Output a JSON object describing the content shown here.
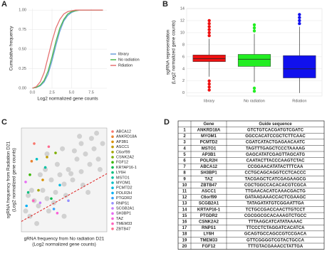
{
  "chart_data": [
    {
      "type": "line",
      "panel": "A",
      "xlabel": "Log2 normalized gene counts",
      "ylabel": "Cumulative frequency",
      "x": [
        0,
        0.5,
        1,
        1.5,
        2,
        2.5,
        3,
        3.5,
        4,
        4.5,
        5,
        5.5,
        6,
        7,
        8,
        9
      ],
      "series": [
        {
          "name": "library",
          "color": "#6a9fd8",
          "values": [
            0,
            0.01,
            0.03,
            0.08,
            0.18,
            0.35,
            0.55,
            0.73,
            0.86,
            0.93,
            0.97,
            0.99,
            1,
            1,
            1,
            1
          ]
        },
        {
          "name": "No radiation",
          "color": "#4cb84c",
          "values": [
            0,
            0.01,
            0.04,
            0.1,
            0.22,
            0.4,
            0.6,
            0.77,
            0.88,
            0.95,
            0.98,
            0.99,
            1,
            1,
            1,
            1
          ]
        },
        {
          "name": "Rdiation",
          "color": "#e57373",
          "values": [
            0,
            0.02,
            0.08,
            0.2,
            0.4,
            0.6,
            0.77,
            0.88,
            0.95,
            0.98,
            0.99,
            1,
            1,
            1,
            1,
            1
          ]
        }
      ],
      "xlim": [
        -0.5,
        9.5
      ],
      "ylim": [
        0,
        1.02
      ],
      "xticks": [
        {
          "value": 0,
          "label": "0.0"
        },
        {
          "value": 2.5,
          "label": "2.5"
        },
        {
          "value": 5,
          "label": "5.0"
        },
        {
          "value": 7.5,
          "label": "7.5"
        }
      ],
      "yticks": [
        {
          "value": 0,
          "label": "0.00"
        },
        {
          "value": 0.25,
          "label": "0.25"
        },
        {
          "value": 0.5,
          "label": "0.50"
        },
        {
          "value": 0.75,
          "label": "0.75"
        },
        {
          "value": 1,
          "label": "1.00"
        }
      ]
    },
    {
      "type": "box",
      "panel": "B",
      "ylabel": [
        "sgRNA representation",
        "(Log2 normalized gene counts)"
      ],
      "categories": [
        "library",
        "No radiation",
        "Rdiation"
      ],
      "boxes": [
        {
          "color": "#ee1111",
          "min": 2.7,
          "q1": 5.2,
          "median": 5.7,
          "q3": 6.3,
          "max": 9,
          "outliers": [
            0.5,
            1,
            1.5,
            2,
            9.5,
            10,
            10.5,
            11,
            11.5,
            12
          ]
        },
        {
          "color": "#22ee22",
          "min": 1.8,
          "q1": 4.4,
          "median": 5.6,
          "q3": 6.4,
          "max": 9.8,
          "outliers": [
            0.3,
            0.8,
            10.3,
            10.8,
            11.3
          ]
        },
        {
          "color": "#1111ee",
          "min": 0,
          "q1": 2.5,
          "median": 4,
          "q3": 6.2,
          "max": 11,
          "outliers": [
            11.5,
            12,
            12.5,
            13
          ]
        }
      ],
      "ylim": [
        -0.5,
        14
      ],
      "yticks": [
        0,
        2,
        4,
        6,
        8,
        10,
        12,
        14
      ]
    },
    {
      "type": "scatter",
      "panel": "C",
      "xlabel": [
        "gRNA frequency from No radiation D21",
        "(Log2 normalized gene counts)"
      ],
      "ylabel": [
        "sgRNA frequency from Radiation D21",
        "(Log2 normalized gene counts)"
      ],
      "xlim": [
        0,
        10
      ],
      "ylim": [
        0,
        10
      ],
      "background": {
        "color": "#c8c8c8",
        "x": [
          0.5,
          1,
          1.5,
          2,
          2.5,
          3,
          3.5,
          4,
          4.5,
          5,
          5.5,
          6,
          6.5,
          7,
          7.5,
          8,
          8.5,
          9,
          9.5,
          1.2,
          2.2,
          3.2,
          4.2,
          5.2,
          6.2,
          7.2,
          8.2,
          9.2,
          0.8,
          1.8,
          2.8,
          3.8,
          4.8,
          5.8,
          6.8,
          7.8,
          8.8,
          3,
          5,
          7
        ],
        "y": [
          2,
          1.5,
          3,
          2.5,
          4,
          3.2,
          5,
          3.8,
          5.5,
          4.6,
          6,
          5,
          7,
          5.8,
          7.5,
          6.5,
          8,
          7,
          8.5,
          4,
          5.5,
          2,
          6.5,
          3.5,
          7.8,
          4.5,
          9,
          6,
          3.5,
          0.8,
          6,
          2.8,
          8,
          5.6,
          9.2,
          3.8,
          9.5,
          7.5,
          1.5,
          8.5
        ]
      },
      "trend": {
        "color": "#e02020",
        "x": [
          0,
          10
        ],
        "y": [
          1,
          5.6
        ]
      },
      "series": [
        {
          "name": "ABCA12",
          "color": "#F8766D",
          "x": [
            1.5
          ],
          "y": [
            8.5
          ]
        },
        {
          "name": "ANKRD18A",
          "color": "#EA8331",
          "x": [
            1.2
          ],
          "y": [
            6.8
          ]
        },
        {
          "name": "AP3B1",
          "color": "#D89000",
          "x": [
            2.5
          ],
          "y": [
            5
          ]
        },
        {
          "name": "ASCC1",
          "color": "#C09B00",
          "x": [
            3
          ],
          "y": [
            7.2
          ]
        },
        {
          "name": "C6orf99",
          "color": "#A3A500",
          "x": [
            2
          ],
          "y": [
            4
          ]
        },
        {
          "name": "CSNK2A2",
          "color": "#7CAE00",
          "x": [
            4
          ],
          "y": [
            7.6
          ]
        },
        {
          "name": "FGF12",
          "color": "#39B600",
          "x": [
            1
          ],
          "y": [
            5.5
          ]
        },
        {
          "name": "KRTAP16-1",
          "color": "#00BB4E",
          "x": [
            3.5
          ],
          "y": [
            3.2
          ]
        },
        {
          "name": "LY6H",
          "color": "#00BF7D",
          "x": [
            0.8
          ],
          "y": [
            3.8
          ]
        },
        {
          "name": "MSTO1",
          "color": "#00C1A3",
          "x": [
            2.8
          ],
          "y": [
            6.2
          ]
        },
        {
          "name": "MYOM1",
          "color": "#00BFC4",
          "x": [
            1.8
          ],
          "y": [
            7
          ]
        },
        {
          "name": "PCMTD2",
          "color": "#00BAE0",
          "x": [
            4.5
          ],
          "y": [
            4.5
          ]
        },
        {
          "name": "POLR2H",
          "color": "#00B0F6",
          "x": [
            0.6
          ],
          "y": [
            2.5
          ]
        },
        {
          "name": "PTGDR2",
          "color": "#35A2FF",
          "x": [
            3.8
          ],
          "y": [
            2.2
          ]
        },
        {
          "name": "RNPS1",
          "color": "#9590FF",
          "x": [
            5.5
          ],
          "y": [
            3
          ]
        },
        {
          "name": "SCGB2A1",
          "color": "#C77CFF",
          "x": [
            2.2
          ],
          "y": [
            2.8
          ]
        },
        {
          "name": "SH3BP1",
          "color": "#E76BF3",
          "x": [
            0.5
          ],
          "y": [
            4.8
          ]
        },
        {
          "name": "TAZ",
          "color": "#FA62DB",
          "x": [
            4.2
          ],
          "y": [
            1.8
          ]
        },
        {
          "name": "TMEM33",
          "color": "#FF62BC",
          "x": [
            1.4
          ],
          "y": [
            3
          ]
        },
        {
          "name": "ZBTB47",
          "color": "#FF6C90",
          "x": [
            3.2
          ],
          "y": [
            8.2
          ]
        }
      ]
    }
  ],
  "table": {
    "panel": "D",
    "columns": [
      "Gene",
      "Guide sequence"
    ],
    "rows": [
      [
        "1",
        "ANKRD18A",
        "GTCTGTCACGATGTCGATC"
      ],
      [
        "2",
        "MYOM1",
        "GGCCACATCCGCTCTTCAAC"
      ],
      [
        "3",
        "PCMTD2",
        "CGATCATACTGAGAACAATC"
      ],
      [
        "4",
        "MSTO1",
        "TAGTTTGAGCTCCCTAAAAG"
      ],
      [
        "5",
        "AP3B1",
        "GAGCATATCGAGTTAGCATG"
      ],
      [
        "6",
        "POLR2H",
        "CAATACTTACCCAAGTCTAC"
      ],
      [
        "7",
        "ABCA12",
        "CCGGAACATATACTTTCAA"
      ],
      [
        "8",
        "SH3BP1",
        "CCTGCAGCAGGTCCTCACCC"
      ],
      [
        "9",
        "TAZ",
        "TACGAGCTCATCGAGAAGCG"
      ],
      [
        "10",
        "ZBTB47",
        "CGCTGGCCACACACGTCGCA"
      ],
      [
        "11",
        "ASCC1",
        "TTGAACACATCAAACGACTG"
      ],
      [
        "12",
        "C6orf99",
        "GATAAGAAACCACTCGAAGC"
      ],
      [
        "13",
        "SCGB2A1",
        "TATAGATATGTCGGAATTGA"
      ],
      [
        "14",
        "KRTAP16-1",
        "TCTGCCGACCAACTTGTCCT"
      ],
      [
        "15",
        "PTGDR2",
        "CGCGGCGCACAAAGTCTGCC"
      ],
      [
        "16",
        "CSNK2A2",
        "TTTAAGCATCATATAAAAC"
      ],
      [
        "17",
        "RNPS1",
        "TTCCCTCTAGGATCACATCA"
      ],
      [
        "18",
        "LY6H",
        "GCAGTGCCAGCCGTCCGACA"
      ],
      [
        "19",
        "TMEM33",
        "GTTCGGGGTCGTACTGCCA"
      ],
      [
        "20",
        "FGF12",
        "TTTGTACGAAACCTATTGA"
      ]
    ]
  }
}
